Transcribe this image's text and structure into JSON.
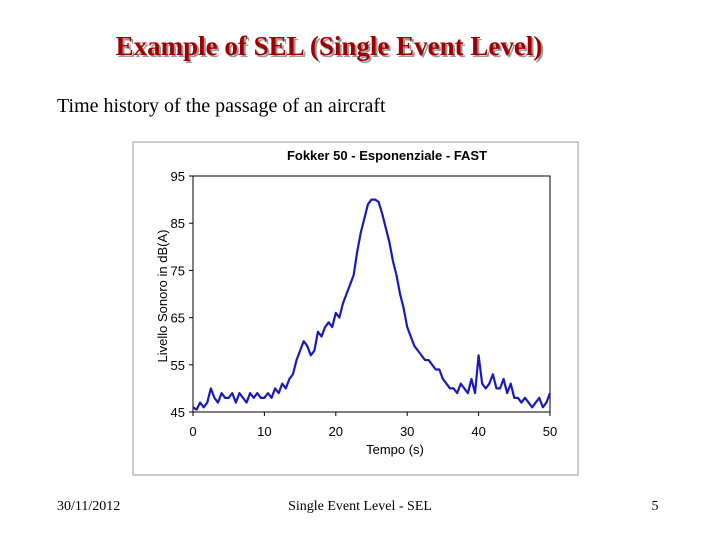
{
  "slide_title": "Example of SEL (Single Event Level)",
  "subtitle": "Time history of the passage of an aircraft",
  "footer": {
    "date": "30/11/2012",
    "center": "Single Event Level - SEL",
    "page": "5"
  },
  "chart_data": {
    "type": "line",
    "title": "Fokker 50 - Esponenziale - FAST",
    "x_label": "Tempo (s)",
    "y_label": "Livello Sonoro in dB(A)",
    "xlim": [
      0,
      50
    ],
    "xticks": [
      0,
      10,
      20,
      30,
      40,
      50
    ],
    "ylim": [
      45,
      95
    ],
    "yticks": [
      45,
      55,
      65,
      75,
      85,
      95
    ],
    "x": [
      0,
      0.5,
      1,
      1.5,
      2,
      2.5,
      3,
      3.5,
      4,
      4.5,
      5,
      5.5,
      6,
      6.5,
      7,
      7.5,
      8,
      8.5,
      9,
      9.5,
      10,
      10.5,
      11,
      11.5,
      12,
      12.5,
      13,
      13.5,
      14,
      14.5,
      15,
      15.5,
      16,
      16.5,
      17,
      17.5,
      18,
      18.5,
      19,
      19.5,
      20,
      20.5,
      21,
      21.5,
      22,
      22.5,
      23,
      23.5,
      24,
      24.5,
      25,
      25.5,
      26,
      26.5,
      27,
      27.5,
      28,
      28.5,
      29,
      29.5,
      30,
      30.5,
      31,
      31.5,
      32,
      32.5,
      33,
      33.5,
      34,
      34.5,
      35,
      35.5,
      36,
      36.5,
      37,
      37.5,
      38,
      38.5,
      39,
      39.5,
      40,
      40.5,
      41,
      41.5,
      42,
      42.5,
      43,
      43.5,
      44,
      44.5,
      45,
      45.5,
      46,
      46.5,
      47,
      47.5,
      48,
      48.5,
      49,
      49.5,
      50
    ],
    "series": [
      {
        "name": "Livello",
        "color": "#1a1ab8",
        "values": [
          46,
          45.5,
          47,
          46,
          47,
          50,
          48,
          47,
          49,
          48,
          48,
          49,
          47,
          49,
          48,
          47,
          49,
          48,
          49,
          48,
          48,
          49,
          48,
          50,
          49,
          51,
          50,
          52,
          53,
          56,
          58,
          60,
          59,
          57,
          58,
          62,
          61,
          63,
          64,
          63,
          66,
          65,
          68,
          70,
          72,
          74,
          79,
          83,
          86,
          89,
          90,
          90,
          89.5,
          87,
          84,
          81,
          77,
          74,
          70,
          67,
          63,
          61,
          59,
          58,
          57,
          56,
          56,
          55,
          54,
          54,
          52,
          51,
          50,
          50,
          49,
          51,
          50,
          49,
          52,
          49,
          57,
          51,
          50,
          51,
          53,
          50,
          50,
          52,
          49,
          51,
          48,
          48,
          47,
          48,
          47,
          46,
          47,
          48,
          46,
          47,
          49
        ]
      }
    ]
  }
}
